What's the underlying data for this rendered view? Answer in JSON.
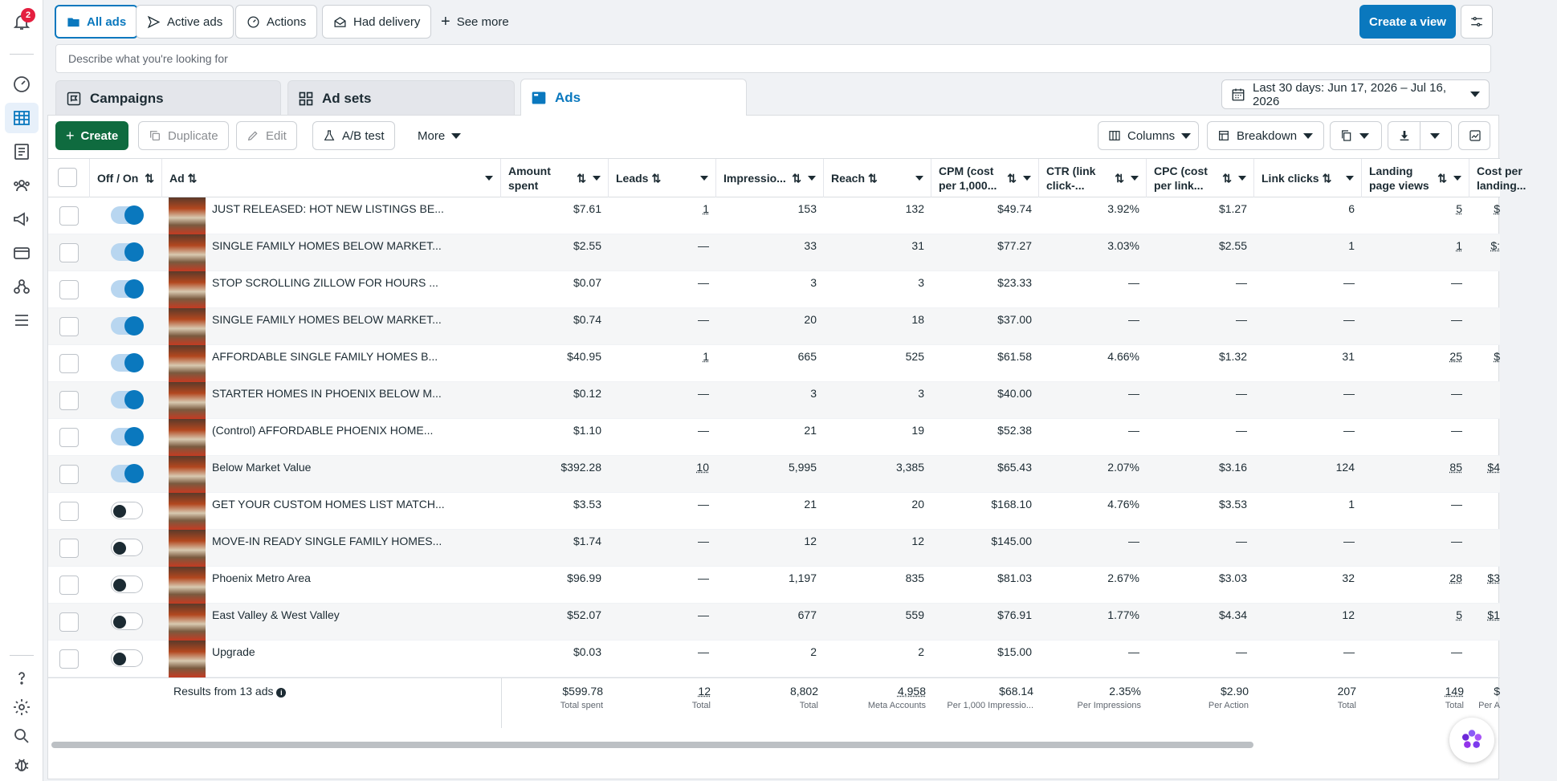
{
  "rail": {
    "notifications_count": "2"
  },
  "views": {
    "all_ads": "All ads",
    "active_ads": "Active ads",
    "actions": "Actions",
    "had_delivery": "Had delivery",
    "see_more": "See more",
    "create_view": "Create a view"
  },
  "search": {
    "placeholder": "Describe what you're looking for"
  },
  "levels": {
    "campaigns": "Campaigns",
    "ad_sets": "Ad sets",
    "ads": "Ads"
  },
  "date_range": "Last 30 days: Jun 17, 2026 – Jul 16, 2026",
  "toolbar": {
    "create": "Create",
    "duplicate": "Duplicate",
    "edit": "Edit",
    "ab_test": "A/B test",
    "more": "More",
    "columns": "Columns",
    "breakdown": "Breakdown"
  },
  "columns": {
    "off_on": "Off / On",
    "ad": "Ad",
    "amount_spent": "Amount spent",
    "leads": "Leads",
    "impressions": "Impressio...",
    "reach": "Reach",
    "cpm": "CPM (cost per 1,000...",
    "ctr": "CTR (link click-...",
    "cpc": "CPC (cost per link...",
    "link_clicks": "Link clicks",
    "landing_page_views": "Landing page views",
    "cost_per_landing": "Cost per landing..."
  },
  "rows": [
    {
      "name": "JUST RELEASED: HOT NEW LISTINGS BE...",
      "on": true,
      "spent": "$7.61",
      "leads": "1",
      "impr": "153",
      "reach": "132",
      "cpm": "$49.74",
      "ctr": "3.92%",
      "cpc": "$1.27",
      "clicks": "6",
      "lpv": "5",
      "cpl": "$"
    },
    {
      "name": "SINGLE FAMILY HOMES BELOW MARKET...",
      "on": true,
      "spent": "$2.55",
      "leads": "—",
      "impr": "33",
      "reach": "31",
      "cpm": "$77.27",
      "ctr": "3.03%",
      "cpc": "$2.55",
      "clicks": "1",
      "lpv": "1",
      "cpl": "$:"
    },
    {
      "name": "STOP SCROLLING ZILLOW FOR HOURS ...",
      "on": true,
      "spent": "$0.07",
      "leads": "—",
      "impr": "3",
      "reach": "3",
      "cpm": "$23.33",
      "ctr": "—",
      "cpc": "—",
      "clicks": "—",
      "lpv": "—",
      "cpl": ""
    },
    {
      "name": "SINGLE FAMILY HOMES BELOW MARKET...",
      "on": true,
      "spent": "$0.74",
      "leads": "—",
      "impr": "20",
      "reach": "18",
      "cpm": "$37.00",
      "ctr": "—",
      "cpc": "—",
      "clicks": "—",
      "lpv": "—",
      "cpl": ""
    },
    {
      "name": "AFFORDABLE SINGLE FAMILY HOMES B...",
      "on": true,
      "spent": "$40.95",
      "leads": "1",
      "impr": "665",
      "reach": "525",
      "cpm": "$61.58",
      "ctr": "4.66%",
      "cpc": "$1.32",
      "clicks": "31",
      "lpv": "25",
      "cpl": "$"
    },
    {
      "name": "STARTER HOMES IN PHOENIX BELOW M...",
      "on": true,
      "spent": "$0.12",
      "leads": "—",
      "impr": "3",
      "reach": "3",
      "cpm": "$40.00",
      "ctr": "—",
      "cpc": "—",
      "clicks": "—",
      "lpv": "—",
      "cpl": ""
    },
    {
      "name": "(Control) AFFORDABLE PHOENIX HOME...",
      "on": true,
      "spent": "$1.10",
      "leads": "—",
      "impr": "21",
      "reach": "19",
      "cpm": "$52.38",
      "ctr": "—",
      "cpc": "—",
      "clicks": "—",
      "lpv": "—",
      "cpl": ""
    },
    {
      "name": "Below Market Value",
      "on": true,
      "spent": "$392.28",
      "leads": "10",
      "impr": "5,995",
      "reach": "3,385",
      "cpm": "$65.43",
      "ctr": "2.07%",
      "cpc": "$3.16",
      "clicks": "124",
      "lpv": "85",
      "cpl": "$4"
    },
    {
      "name": "GET YOUR CUSTOM HOMES LIST MATCH...",
      "on": false,
      "spent": "$3.53",
      "leads": "—",
      "impr": "21",
      "reach": "20",
      "cpm": "$168.10",
      "ctr": "4.76%",
      "cpc": "$3.53",
      "clicks": "1",
      "lpv": "—",
      "cpl": ""
    },
    {
      "name": "MOVE-IN READY SINGLE FAMILY HOMES...",
      "on": false,
      "spent": "$1.74",
      "leads": "—",
      "impr": "12",
      "reach": "12",
      "cpm": "$145.00",
      "ctr": "—",
      "cpc": "—",
      "clicks": "—",
      "lpv": "—",
      "cpl": ""
    },
    {
      "name": "Phoenix Metro Area",
      "on": false,
      "spent": "$96.99",
      "leads": "—",
      "impr": "1,197",
      "reach": "835",
      "cpm": "$81.03",
      "ctr": "2.67%",
      "cpc": "$3.03",
      "clicks": "32",
      "lpv": "28",
      "cpl": "$3"
    },
    {
      "name": "East Valley & West Valley",
      "on": false,
      "spent": "$52.07",
      "leads": "—",
      "impr": "677",
      "reach": "559",
      "cpm": "$76.91",
      "ctr": "1.77%",
      "cpc": "$4.34",
      "clicks": "12",
      "lpv": "5",
      "cpl": "$1"
    },
    {
      "name": "Upgrade",
      "on": false,
      "spent": "$0.03",
      "leads": "—",
      "impr": "2",
      "reach": "2",
      "cpm": "$15.00",
      "ctr": "—",
      "cpc": "—",
      "clicks": "—",
      "lpv": "—",
      "cpl": ""
    }
  ],
  "totals": {
    "label": "Results from 13 ads",
    "spent": "$599.78",
    "spent_sub": "Total spent",
    "leads": "12",
    "leads_sub": "Total",
    "impr": "8,802",
    "impr_sub": "Total",
    "reach": "4,958",
    "reach_sub": "Meta Accounts",
    "cpm": "$68.14",
    "cpm_sub": "Per 1,000 Impressio...",
    "ctr": "2.35%",
    "ctr_sub": "Per Impressions",
    "cpc": "$2.90",
    "cpc_sub": "Per Action",
    "clicks": "207",
    "clicks_sub": "Total",
    "lpv": "149",
    "lpv_sub": "Total",
    "cpl": "$",
    "cpl_sub": "Per A"
  }
}
